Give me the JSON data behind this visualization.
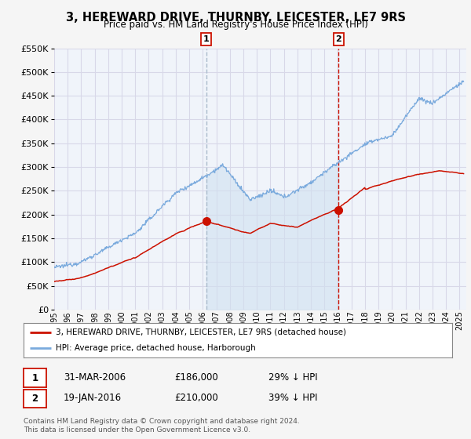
{
  "title": "3, HEREWARD DRIVE, THURNBY, LEICESTER, LE7 9RS",
  "subtitle": "Price paid vs. HM Land Registry's House Price Index (HPI)",
  "ylim": [
    0,
    550000
  ],
  "yticks": [
    0,
    50000,
    100000,
    150000,
    200000,
    250000,
    300000,
    350000,
    400000,
    450000,
    500000,
    550000
  ],
  "xlim_start": 1995.0,
  "xlim_end": 2025.5,
  "background_color": "#f5f5f5",
  "plot_bg_color": "#f0f4fa",
  "grid_color": "#d8d8e8",
  "hpi_color": "#7aaadd",
  "price_color": "#cc1100",
  "fill_color": "#d0e0f0",
  "marker1_x": 2006.25,
  "marker1_y": 186000,
  "marker2_x": 2016.05,
  "marker2_y": 210000,
  "legend_line1": "3, HEREWARD DRIVE, THURNBY, LEICESTER, LE7 9RS (detached house)",
  "legend_line2": "HPI: Average price, detached house, Harborough",
  "marker1_date": "31-MAR-2006",
  "marker1_price": "£186,000",
  "marker1_hpi": "29% ↓ HPI",
  "marker2_date": "19-JAN-2016",
  "marker2_price": "£210,000",
  "marker2_hpi": "39% ↓ HPI",
  "footer": "Contains HM Land Registry data © Crown copyright and database right 2024.\nThis data is licensed under the Open Government Licence v3.0."
}
